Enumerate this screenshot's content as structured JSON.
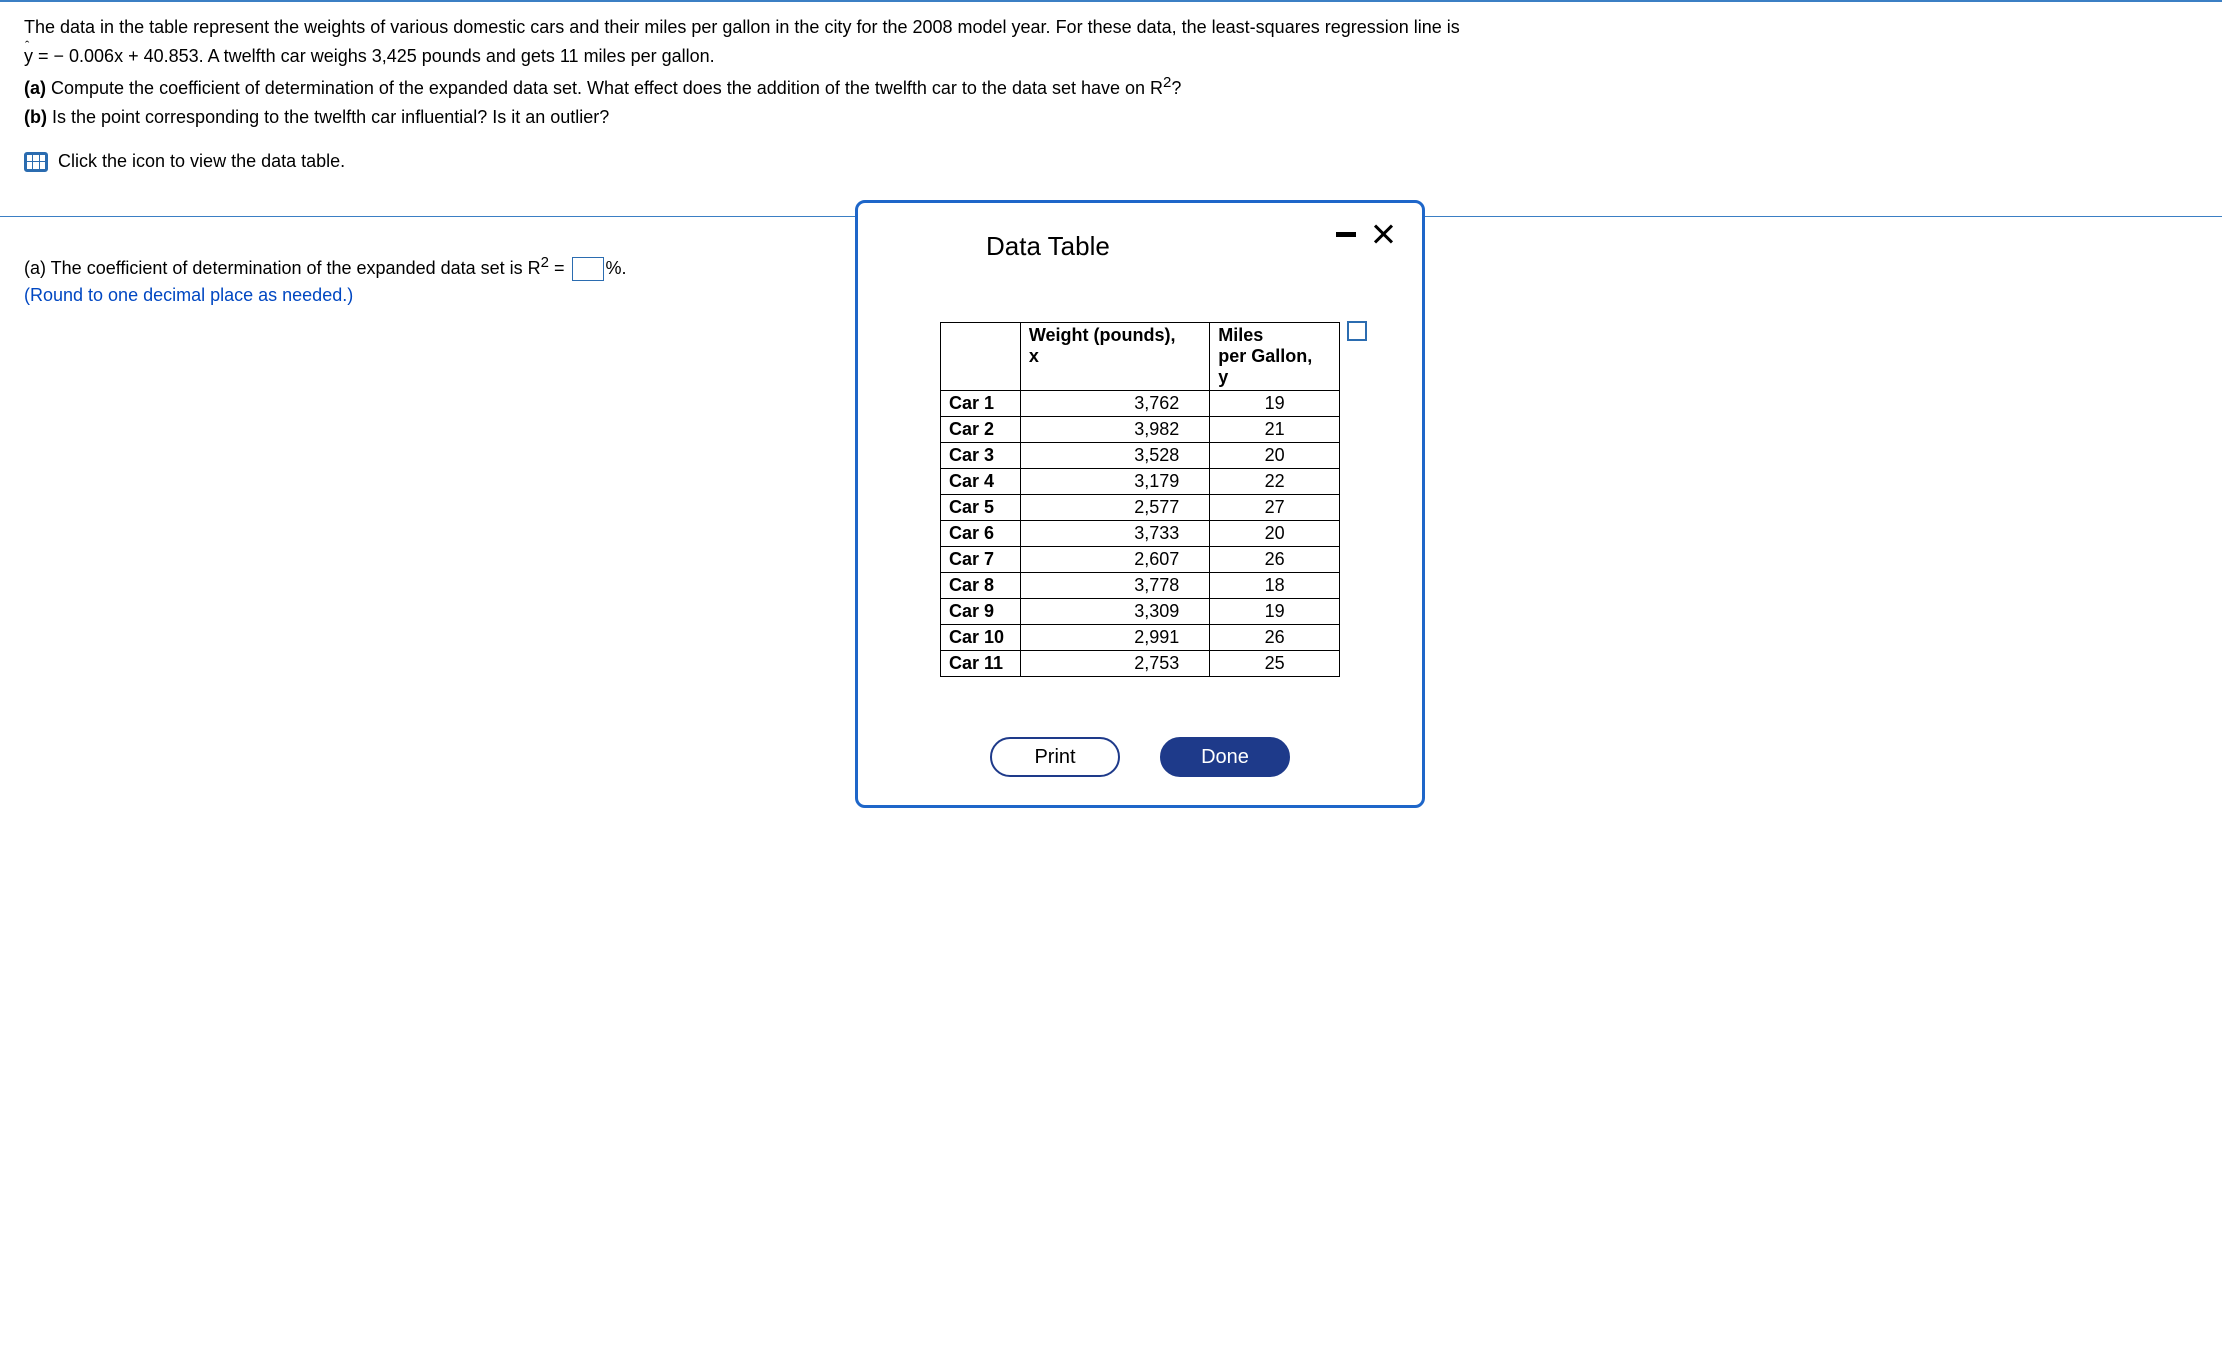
{
  "question": {
    "line1": "The data in the table represent the weights of various domestic cars and their miles per gallon in the city for the 2008 model year. For these data, the least-squares regression line is",
    "eq_prefix": "y",
    "eq_rest": " = − 0.006x + 40.853. A twelfth car weighs 3,425 pounds and gets 11 miles per gallon.",
    "part_a_label": "(a)",
    "part_a_text": " Compute the coefficient of determination of the expanded data set. What effect does the addition of the twelfth car to the data set have on R",
    "part_a_tail": "?",
    "part_b_label": "(b)",
    "part_b_text": " Is the point corresponding to the twelfth car influential? Is it an outlier?",
    "icon_link_text": "Click the icon to view the data table."
  },
  "answer": {
    "pre": "(a) The coefficient of determination of the expanded data set is R",
    "eq": " = ",
    "post": "%.",
    "round_note": "(Round to one decimal place as needed.)"
  },
  "modal": {
    "title": "Data Table",
    "col_car": "",
    "col_x_l1": "Weight (pounds),",
    "col_x_l2": "x",
    "col_y_l1": "Miles",
    "col_y_l2": "per Gallon,",
    "col_y_l3": "y",
    "rows": [
      {
        "name": "Car 1",
        "x": "3,762",
        "y": "19"
      },
      {
        "name": "Car 2",
        "x": "3,982",
        "y": "21"
      },
      {
        "name": "Car 3",
        "x": "3,528",
        "y": "20"
      },
      {
        "name": "Car 4",
        "x": "3,179",
        "y": "22"
      },
      {
        "name": "Car 5",
        "x": "2,577",
        "y": "27"
      },
      {
        "name": "Car 6",
        "x": "3,733",
        "y": "20"
      },
      {
        "name": "Car 7",
        "x": "2,607",
        "y": "26"
      },
      {
        "name": "Car 8",
        "x": "3,778",
        "y": "18"
      },
      {
        "name": "Car 9",
        "x": "3,309",
        "y": "19"
      },
      {
        "name": "Car 10",
        "x": "2,991",
        "y": "26"
      },
      {
        "name": "Car 11",
        "x": "2,753",
        "y": "25"
      }
    ],
    "print_label": "Print",
    "done_label": "Done"
  },
  "style": {
    "accent": "#1e66c9",
    "link_blue": "#0047c2"
  }
}
